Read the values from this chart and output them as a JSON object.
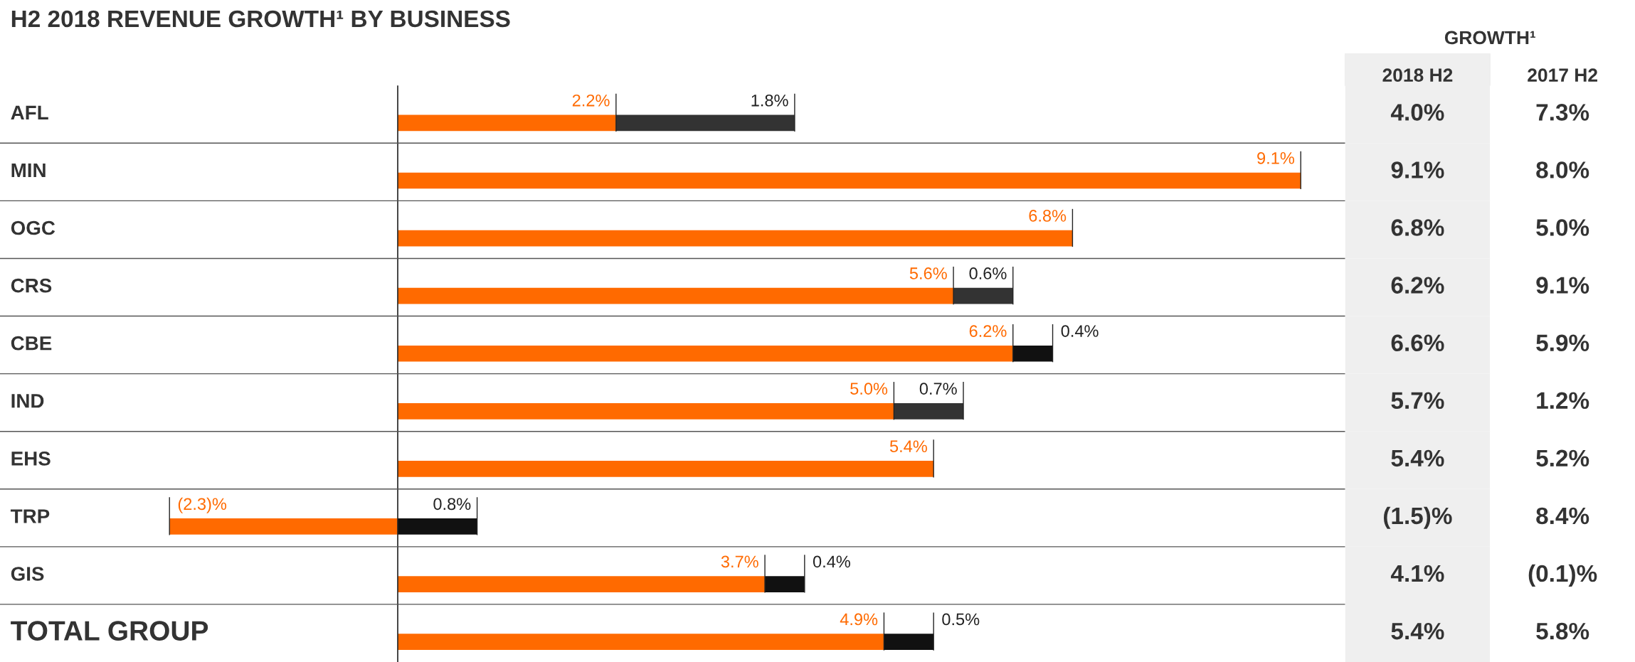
{
  "chart_data": [
    {
      "type": "bar",
      "orientation": "horizontal",
      "stacked": true,
      "title": "H2 2018 REVENUE GROWTH¹ BY BUSINESS",
      "categories": [
        "AFL",
        "MIN",
        "OGC",
        "CRS",
        "CBE",
        "IND",
        "EHS",
        "TRP",
        "GIS",
        "TOTAL GROUP"
      ],
      "series": [
        {
          "color": "#ff6a00",
          "values": [
            2.2,
            9.1,
            6.8,
            5.6,
            6.2,
            5.0,
            5.4,
            -2.3,
            3.7,
            4.9
          ],
          "value_labels": [
            "2.2%",
            "9.1%",
            "6.8%",
            "5.6%",
            "6.2%",
            "5.0%",
            "5.4%",
            "(2.3)%",
            "3.7%",
            "4.9%"
          ]
        },
        {
          "colors": [
            "#333333",
            "#333333",
            "#333333",
            "#333333",
            "#111111",
            "#333333",
            "#333333",
            "#111111",
            "#111111",
            "#111111"
          ],
          "values": [
            1.8,
            null,
            null,
            0.6,
            0.4,
            0.7,
            null,
            0.8,
            0.4,
            0.5
          ],
          "value_labels": [
            "1.8%",
            null,
            null,
            "0.6%",
            "0.4%",
            "0.7%",
            null,
            "0.8%",
            "0.4%",
            "0.5%"
          ]
        }
      ],
      "legend": false
    },
    {
      "type": "other",
      "title": "GROWTH¹",
      "categories": [
        "2018 H2",
        "2017 H2"
      ],
      "annotations": [
        "4.0%",
        "7.3%",
        "9.1%",
        "8.0%",
        "6.8%",
        "5.0%",
        "6.2%",
        "9.1%",
        "6.6%",
        "5.9%",
        "5.7%",
        "1.2%",
        "5.4%",
        "5.2%",
        "(1.5)%",
        "8.4%",
        "4.1%",
        "(0.1)%",
        "5.4%",
        "5.8%"
      ]
    }
  ]
}
